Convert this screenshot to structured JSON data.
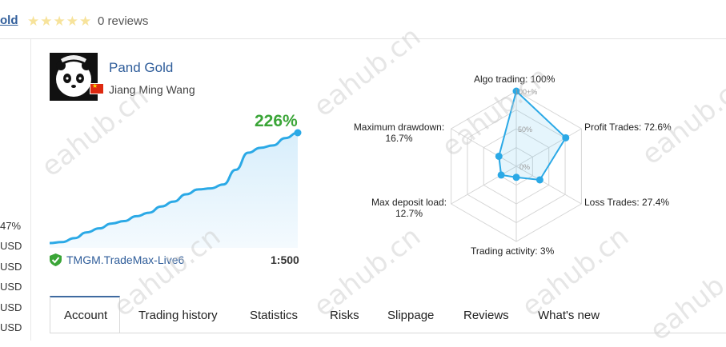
{
  "header": {
    "title_fragment": "old",
    "rating_stars": 5,
    "reviews_label": "0 reviews"
  },
  "left_column": {
    "values": [
      "47%",
      "USD",
      "USD",
      "USD",
      "USD",
      "USD"
    ]
  },
  "signal": {
    "name": "Pand Gold",
    "author": "Jiang Ming Wang",
    "growth": "226%",
    "broker": "TMGM.TradeMax-Live6",
    "leverage": "1:500"
  },
  "tabs": [
    {
      "label": "Account",
      "active": true
    },
    {
      "label": "Trading history"
    },
    {
      "label": "Statistics"
    },
    {
      "label": "Risks"
    },
    {
      "label": "Slippage"
    },
    {
      "label": "Reviews"
    },
    {
      "label": "What's new"
    }
  ],
  "radar": {
    "axes": [
      {
        "label": "Algo trading: 100%",
        "value": 100
      },
      {
        "label": "Profit Trades: 72.6%",
        "value": 72.6
      },
      {
        "label": "Loss Trades: 27.4%",
        "value": 27.4
      },
      {
        "label": "Trading activity: 3%",
        "value": 3
      },
      {
        "label_line1": "Max deposit load:",
        "label_line2": "12.7%",
        "value": 12.7
      },
      {
        "label_line1": "Maximum drawdown:",
        "label_line2": "16.7%",
        "value": 16.7
      }
    ],
    "scale_labels": [
      "100+%",
      "50%",
      "0%"
    ]
  },
  "chart_data": {
    "type": "area",
    "title": "",
    "xlabel": "",
    "ylabel": "",
    "series": [
      {
        "values": [
          0,
          2,
          10,
          22,
          30,
          40,
          45,
          55,
          62,
          75,
          85,
          100,
          110,
          112,
          120,
          150,
          185,
          195,
          200,
          215,
          226
        ]
      }
    ],
    "ylim": [
      0,
      226
    ]
  },
  "colors": {
    "accent": "#2f5d9a",
    "growth": "#3aa537",
    "line": "#2ba9e6"
  },
  "watermark": "eahub.cn"
}
